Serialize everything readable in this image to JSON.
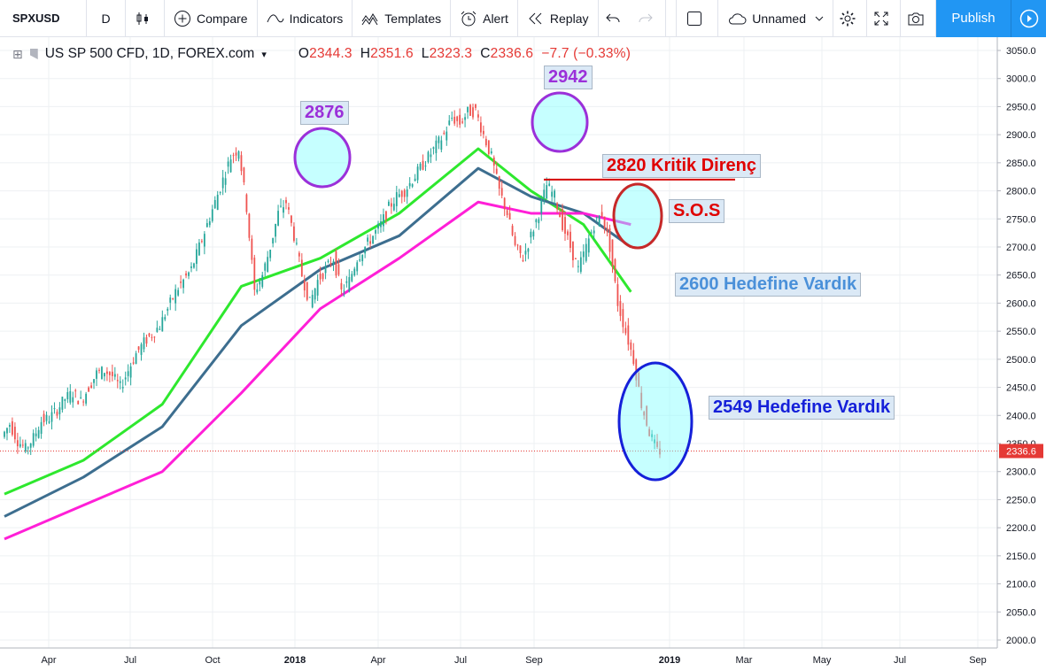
{
  "toolbar": {
    "symbol": "SPXUSD",
    "interval": "D",
    "compare_label": "Compare",
    "indicators_label": "Indicators",
    "templates_label": "Templates",
    "alert_label": "Alert",
    "replay_label": "Replay",
    "layout_name": "Unnamed",
    "publish_label": "Publish"
  },
  "legend": {
    "title": "US SP 500 CFD, 1D, FOREX.com",
    "open_label": "O",
    "open": "2344.3",
    "high_label": "H",
    "high": "2351.6",
    "low_label": "L",
    "low": "2323.3",
    "close_label": "C",
    "close": "2336.6",
    "change": "−7.7 (−0.33%)"
  },
  "annotations": {
    "peak1": "2876",
    "peak2": "2942",
    "resistance": "2820 Kritik Direnç",
    "sos": "S.O.S",
    "target1": "2600 Hedefine Vardık",
    "target2": "2549 Hedefine Vardık"
  },
  "colors": {
    "up": "#26a69a",
    "down": "#ef5350",
    "ema_short": "#2ee82e",
    "ema_mid": "#3d6e8f",
    "ema_long": "#ff1fd7",
    "price_line": "#e53935",
    "circle_blue": "#1520d9",
    "circle_purple": "#9b30d9",
    "circle_red": "#c62828"
  },
  "chart_data": {
    "type": "line",
    "title": "US SP 500 CFD, 1D, FOREX.com",
    "y_axis_ticks": [
      3050.0,
      3000.0,
      2950.0,
      2900.0,
      2850.0,
      2800.0,
      2750.0,
      2700.0,
      2650.0,
      2600.0,
      2550.0,
      2500.0,
      2450.0,
      2400.0,
      2350.0,
      2300.0,
      2250.0,
      2200.0,
      2150.0,
      2100.0,
      2050.0,
      2000.0
    ],
    "ylim": [
      1980,
      3060
    ],
    "x_axis_ticks": [
      "Apr",
      "Jul",
      "Oct",
      "2018",
      "Apr",
      "Jul",
      "Sep",
      "2019",
      "Mar",
      "May",
      "Jul",
      "Sep"
    ],
    "last_price": "2336.6",
    "price_x": [
      0,
      3,
      6,
      9,
      12,
      15,
      18,
      21,
      24,
      27,
      30,
      33,
      36,
      39,
      42,
      45,
      48,
      51,
      54,
      57,
      60,
      63,
      66,
      69,
      72,
      75,
      78,
      81,
      84,
      87,
      90,
      93,
      96,
      99,
      102,
      105,
      108,
      111,
      114,
      117,
      120,
      123,
      126,
      129,
      132,
      135,
      138,
      141,
      144,
      147,
      150,
      153,
      156,
      159,
      162,
      165,
      168,
      171,
      174,
      177,
      180,
      183,
      186,
      189,
      192,
      195,
      198,
      201,
      204,
      207,
      210,
      213,
      216,
      219,
      222,
      225,
      228,
      231,
      234,
      237,
      240,
      243,
      246,
      249
    ],
    "price_y": [
      2362,
      2385,
      2355,
      2340,
      2360,
      2390,
      2395,
      2410,
      2430,
      2440,
      2425,
      2450,
      2475,
      2480,
      2470,
      2450,
      2480,
      2510,
      2530,
      2545,
      2560,
      2590,
      2620,
      2640,
      2660,
      2700,
      2740,
      2780,
      2820,
      2860,
      2876,
      2770,
      2620,
      2650,
      2700,
      2760,
      2780,
      2720,
      2650,
      2600,
      2640,
      2660,
      2680,
      2620,
      2640,
      2680,
      2700,
      2720,
      2740,
      2770,
      2790,
      2800,
      2820,
      2840,
      2860,
      2880,
      2900,
      2930,
      2920,
      2940,
      2942,
      2900,
      2860,
      2800,
      2760,
      2700,
      2680,
      2720,
      2760,
      2810,
      2790,
      2740,
      2700,
      2660,
      2700,
      2740,
      2760,
      2700,
      2600,
      2549,
      2500,
      2420,
      2370,
      2336.6
    ],
    "series": [
      {
        "values_x": [
          0,
          30,
          60,
          90,
          120,
          150,
          180,
          200,
          220,
          238
        ],
        "values_y": [
          2260,
          2320,
          2420,
          2630,
          2680,
          2760,
          2875,
          2800,
          2740,
          2620
        ]
      },
      {
        "values_x": [
          0,
          30,
          60,
          90,
          120,
          150,
          180,
          200,
          220,
          238
        ],
        "values_y": [
          2220,
          2290,
          2380,
          2560,
          2660,
          2720,
          2840,
          2790,
          2760,
          2700
        ]
      },
      {
        "values_x": [
          0,
          30,
          60,
          90,
          120,
          150,
          180,
          200,
          220,
          238
        ],
        "values_y": [
          2180,
          2240,
          2300,
          2440,
          2590,
          2680,
          2780,
          2760,
          2760,
          2740
        ]
      }
    ],
    "resistance_level": 2820,
    "grid": true,
    "legend_position": "top-left"
  }
}
